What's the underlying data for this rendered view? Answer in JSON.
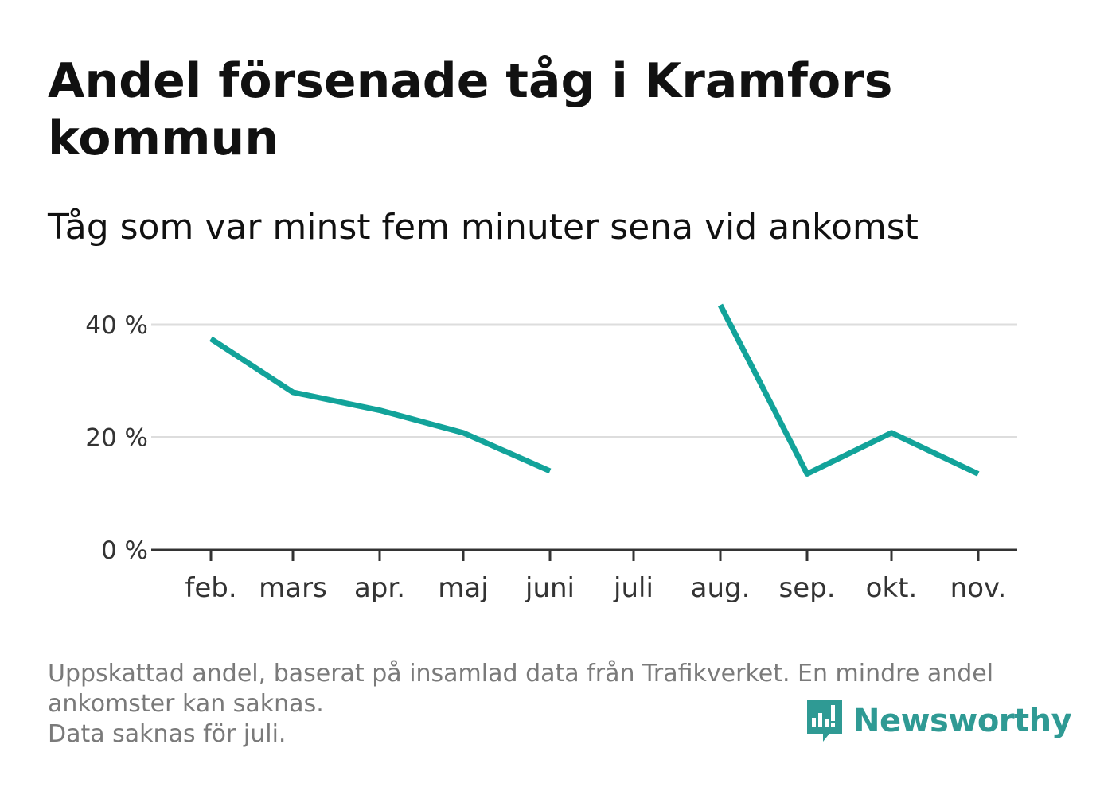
{
  "title": "Andel försenade tåg i Kramfors kommun",
  "subtitle": "Tåg som var minst fem minuter sena vid ankomst",
  "colors": {
    "line": "#12a39a",
    "grid": "#dddddd",
    "axis": "#333333",
    "note": "#7a7a7a",
    "brand": "#2f9a94"
  },
  "chart_data": {
    "type": "line",
    "categories": [
      "feb.",
      "mars",
      "apr.",
      "maj",
      "juni",
      "juli",
      "aug.",
      "sep.",
      "okt.",
      "nov."
    ],
    "series": [
      {
        "values": [
          37.5,
          28,
          24.8,
          20.8,
          14,
          null,
          43.5,
          13.5,
          20.8,
          13.5
        ]
      }
    ],
    "y_ticks": [
      0,
      20,
      40
    ],
    "y_tick_labels": [
      "0 %",
      "20 %",
      "40 %"
    ],
    "ylim": [
      0,
      40
    ],
    "grid": true
  },
  "footnote": {
    "lines": [
      "Uppskattad andel, baserat på insamlad data från Trafikverket. En mindre andel",
      "ankomster kan saknas.",
      "Data saknas för juli."
    ]
  },
  "brand": {
    "name": "Newsworthy",
    "icon": "newsworthy-logo-icon"
  }
}
